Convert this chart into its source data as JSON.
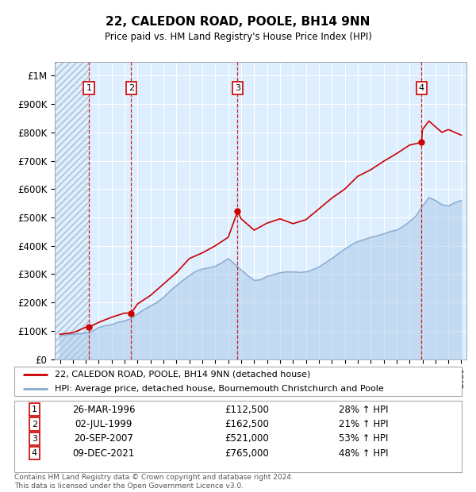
{
  "title": "22, CALEDON ROAD, POOLE, BH14 9NN",
  "subtitle": "Price paid vs. HM Land Registry's House Price Index (HPI)",
  "ylabel_ticks": [
    "£0",
    "£100K",
    "£200K",
    "£300K",
    "£400K",
    "£500K",
    "£600K",
    "£700K",
    "£800K",
    "£900K",
    "£1M"
  ],
  "ytick_values": [
    0,
    100000,
    200000,
    300000,
    400000,
    500000,
    600000,
    700000,
    800000,
    900000,
    1000000
  ],
  "ylim": [
    0,
    1050000
  ],
  "xlim_start": 1993.6,
  "xlim_end": 2025.4,
  "transactions": [
    {
      "year": 1996.23,
      "price": 112500,
      "label": "1"
    },
    {
      "year": 1999.5,
      "price": 162500,
      "label": "2"
    },
    {
      "year": 2007.72,
      "price": 521000,
      "label": "3"
    },
    {
      "year": 2021.93,
      "price": 765000,
      "label": "4"
    }
  ],
  "transaction_color": "#cc0000",
  "hpi_color": "#aac8e8",
  "hpi_fill_alpha": 0.5,
  "hpi_line_color": "#88aacc",
  "background_color": "#ddeeff",
  "hatch_color": "#bbccdd",
  "grid_color": "#ffffff",
  "legend_entries": [
    "22, CALEDON ROAD, POOLE, BH14 9NN (detached house)",
    "HPI: Average price, detached house, Bournemouth Christchurch and Poole"
  ],
  "table_rows": [
    {
      "num": "1",
      "date": "26-MAR-1996",
      "price": "£112,500",
      "hpi": "28% ↑ HPI"
    },
    {
      "num": "2",
      "date": "02-JUL-1999",
      "price": "£162,500",
      "hpi": "21% ↑ HPI"
    },
    {
      "num": "3",
      "date": "20-SEP-2007",
      "price": "£521,000",
      "hpi": "53% ↑ HPI"
    },
    {
      "num": "4",
      "date": "09-DEC-2021",
      "price": "£765,000",
      "hpi": "48% ↑ HPI"
    }
  ],
  "footer": "Contains HM Land Registry data © Crown copyright and database right 2024.\nThis data is licensed under the Open Government Licence v3.0.",
  "hpi_data_x": [
    1994.0,
    1994.08,
    1994.17,
    1994.25,
    1994.33,
    1994.42,
    1994.5,
    1994.58,
    1994.67,
    1994.75,
    1994.83,
    1994.92,
    1995.0,
    1995.08,
    1995.17,
    1995.25,
    1995.33,
    1995.42,
    1995.5,
    1995.58,
    1995.67,
    1995.75,
    1995.83,
    1995.92,
    1996.0,
    1996.08,
    1996.17,
    1996.25,
    1996.33,
    1996.42,
    1996.5,
    1996.58,
    1996.67,
    1996.75,
    1996.83,
    1996.92,
    1997.0,
    1997.5,
    1998.0,
    1998.5,
    1999.0,
    1999.5,
    2000.0,
    2000.5,
    2001.0,
    2001.5,
    2002.0,
    2002.5,
    2003.0,
    2003.5,
    2004.0,
    2004.5,
    2005.0,
    2005.5,
    2006.0,
    2006.5,
    2007.0,
    2007.5,
    2008.0,
    2008.5,
    2009.0,
    2009.5,
    2010.0,
    2010.5,
    2011.0,
    2011.5,
    2012.0,
    2012.5,
    2013.0,
    2013.5,
    2014.0,
    2014.5,
    2015.0,
    2015.5,
    2016.0,
    2016.5,
    2017.0,
    2017.5,
    2018.0,
    2018.5,
    2019.0,
    2019.5,
    2020.0,
    2020.5,
    2021.0,
    2021.5,
    2022.0,
    2022.5,
    2023.0,
    2023.5,
    2024.0,
    2024.5,
    2025.0
  ],
  "hpi_data_y": [
    82000,
    83000,
    84000,
    85000,
    85000,
    85000,
    86000,
    86000,
    87000,
    87000,
    88000,
    88000,
    88000,
    88000,
    88000,
    89000,
    89000,
    89000,
    89000,
    90000,
    90000,
    90000,
    91000,
    91000,
    92000,
    93000,
    94000,
    95000,
    97000,
    98000,
    100000,
    101000,
    103000,
    105000,
    107000,
    109000,
    112000,
    118000,
    122000,
    130000,
    135000,
    143000,
    160000,
    175000,
    188000,
    200000,
    218000,
    240000,
    260000,
    278000,
    295000,
    310000,
    318000,
    322000,
    328000,
    340000,
    355000,
    335000,
    315000,
    295000,
    278000,
    280000,
    292000,
    298000,
    305000,
    308000,
    308000,
    306000,
    308000,
    315000,
    325000,
    340000,
    355000,
    372000,
    388000,
    403000,
    415000,
    422000,
    430000,
    435000,
    442000,
    450000,
    455000,
    468000,
    485000,
    505000,
    540000,
    570000,
    560000,
    545000,
    540000,
    552000,
    560000
  ],
  "sold_data_x": [
    1994.0,
    1995.0,
    1996.0,
    1996.23,
    1997.0,
    1998.0,
    1999.0,
    1999.5,
    2000.0,
    2001.0,
    2002.0,
    2003.0,
    2004.0,
    2005.0,
    2006.0,
    2007.0,
    2007.72,
    2008.0,
    2009.0,
    2010.0,
    2011.0,
    2012.0,
    2013.0,
    2014.0,
    2015.0,
    2016.0,
    2017.0,
    2018.0,
    2019.0,
    2020.0,
    2021.0,
    2021.93,
    2022.0,
    2022.5,
    2023.0,
    2023.5,
    2024.0,
    2024.5,
    2025.0
  ],
  "sold_data_y": [
    88000,
    93000,
    112500,
    112500,
    130000,
    148000,
    162500,
    162500,
    195000,
    225000,
    265000,
    305000,
    355000,
    375000,
    400000,
    430000,
    521000,
    495000,
    455000,
    480000,
    495000,
    478000,
    492000,
    530000,
    568000,
    600000,
    645000,
    668000,
    698000,
    725000,
    755000,
    765000,
    810000,
    840000,
    820000,
    800000,
    810000,
    800000,
    790000
  ]
}
